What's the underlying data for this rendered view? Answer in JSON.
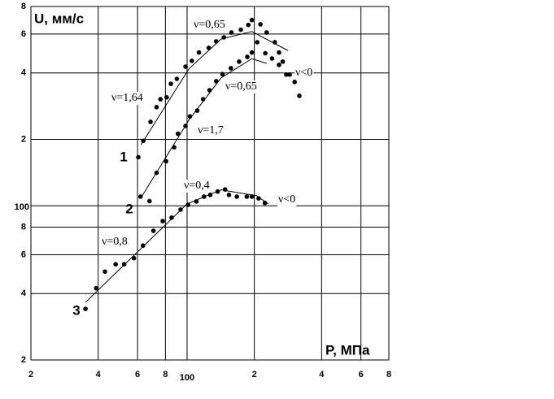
{
  "chart_data": {
    "type": "scatter",
    "xlabel": "P, МПа",
    "ylabel": "U, мм/с",
    "xscale": "log",
    "yscale": "log",
    "grid": true,
    "color": "#000000",
    "xlim": [
      20,
      800
    ],
    "ylim": [
      20,
      800
    ],
    "xticks": [
      {
        "value": 20,
        "label": "2"
      },
      {
        "value": 40,
        "label": "4"
      },
      {
        "value": 60,
        "label": "6"
      },
      {
        "value": 80,
        "label": "8"
      },
      100,
      {
        "value": 200,
        "label": "2"
      },
      {
        "value": 400,
        "label": "4"
      },
      {
        "value": 600,
        "label": "6"
      },
      {
        "value": 800,
        "label": "8"
      }
    ],
    "yticks": [
      {
        "value": 20,
        "label": "2"
      },
      {
        "value": 40,
        "label": "4"
      },
      {
        "value": 60,
        "label": "6"
      },
      {
        "value": 80,
        "label": "8"
      },
      100,
      {
        "value": 200,
        "label": "2"
      },
      {
        "value": 400,
        "label": "4"
      },
      {
        "value": 600,
        "label": "6"
      },
      {
        "value": 800,
        "label": "8"
      }
    ],
    "series": [
      {
        "name": "1",
        "color": "#000000",
        "x": [
          60.5,
          63.7,
          68.6,
          73,
          76,
          81,
          84.6,
          90,
          98.4,
          105,
          113,
          125,
          135,
          146,
          158,
          174,
          188,
          195,
          213,
          227,
          247,
          258,
          268,
          288,
          303,
          318
        ],
        "values": [
          166,
          197,
          240,
          280,
          304,
          310,
          357,
          376,
          427,
          454,
          495,
          520,
          556,
          580,
          610,
          628,
          660,
          695,
          664,
          610,
          551,
          495,
          450,
          393,
          364,
          315
        ],
        "fit_x": [
          62.2,
          102,
          142,
          195,
          283
        ],
        "fit_values": [
          189,
          418,
          570,
          616,
          505
        ]
      },
      {
        "name": "2",
        "color": "#000000",
        "x": [
          61.9,
          67.9,
          73,
          80.5,
          87.5,
          91,
          98.4,
          103,
          111,
          118,
          126,
          135,
          144,
          157,
          171,
          186,
          195,
          206,
          224,
          240,
          258,
          278
        ],
        "values": [
          110,
          105,
          141,
          159,
          184,
          212,
          230,
          254,
          270,
          304,
          334,
          367,
          395,
          420,
          450,
          473,
          495,
          551,
          491,
          465,
          435,
          393
        ],
        "fit_x": [
          61.9,
          102,
          142,
          195,
          227
        ],
        "fit_values": [
          108,
          245,
          380,
          464,
          442
        ]
      },
      {
        "name": "3",
        "color": "#000000",
        "x": [
          35.1,
          39.2,
          42.9,
          47.9,
          52.3,
          57.8,
          63.5,
          70.7,
          77.8,
          85.3,
          93.5,
          101,
          110,
          119,
          127,
          137,
          148,
          154,
          167,
          185,
          195,
          209,
          223
        ],
        "values": [
          34.1,
          42.3,
          50.3,
          54.3,
          54.3,
          57.9,
          66,
          77,
          85.2,
          88.4,
          96.1,
          101,
          104.6,
          110,
          112,
          116,
          118.6,
          112,
          110,
          110,
          110,
          108,
          103
        ],
        "fit_x": [
          35.1,
          100,
          142,
          205,
          231
        ],
        "fit_values": [
          36.5,
          102,
          118,
          111,
          102
        ]
      }
    ],
    "annotations": [
      "ν=0,65",
      "ν=1,64",
      "ν=0,65",
      "ν<0",
      "ν=1,7",
      "ν=0,4",
      "ν<0",
      "ν=0,8"
    ]
  }
}
